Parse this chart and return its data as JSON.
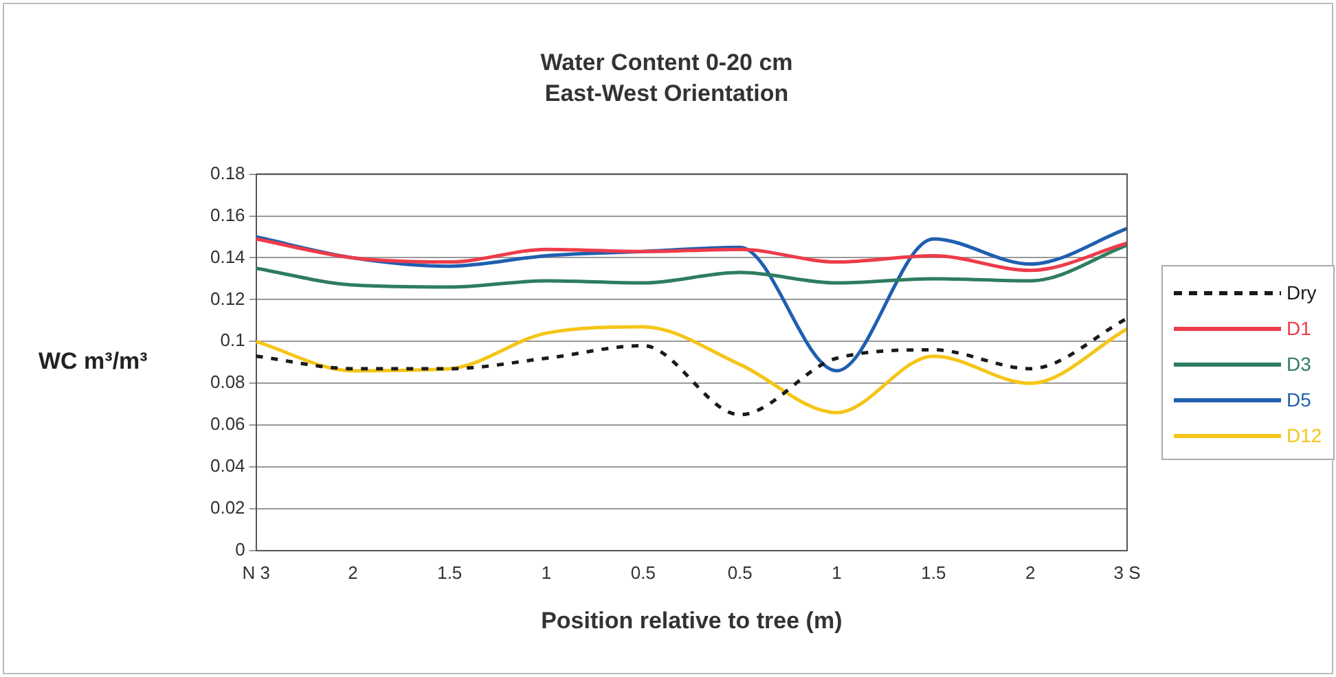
{
  "chart_data": {
    "type": "line",
    "title": "Water Content 0-20 cm",
    "subtitle": "East-West Orientation",
    "xlabel": "Position relative to tree (m)",
    "ylabel": "WC m³/m³",
    "categories": [
      "N 3",
      "2",
      "1.5",
      "1",
      "0.5",
      "0.5",
      "1",
      "1.5",
      "2",
      "3 S"
    ],
    "series": [
      {
        "name": "Dry",
        "color": "#1a1a1a",
        "line_style": "dashed",
        "values": [
          0.093,
          0.087,
          0.087,
          0.092,
          0.098,
          0.065,
          0.092,
          0.096,
          0.087,
          0.111
        ]
      },
      {
        "name": "D1",
        "color": "#ee3b4a",
        "values": [
          0.149,
          0.14,
          0.138,
          0.144,
          0.143,
          0.144,
          0.138,
          0.141,
          0.134,
          0.147
        ]
      },
      {
        "name": "D3",
        "color": "#2e7d5f",
        "values": [
          0.135,
          0.127,
          0.126,
          0.129,
          0.128,
          0.133,
          0.128,
          0.13,
          0.129,
          0.146
        ]
      },
      {
        "name": "D5",
        "color": "#1f5fb0",
        "values": [
          0.15,
          0.14,
          0.136,
          0.141,
          0.143,
          0.145,
          0.086,
          0.149,
          0.137,
          0.154
        ]
      },
      {
        "name": "D12",
        "color": "#f5c518",
        "values": [
          0.1,
          0.086,
          0.087,
          0.104,
          0.107,
          0.089,
          0.066,
          0.093,
          0.08,
          0.106
        ]
      }
    ],
    "ylim": [
      0,
      0.18
    ],
    "yticks": [
      0,
      0.02,
      0.04,
      0.06,
      0.08,
      0.1,
      0.12,
      0.14,
      0.16,
      0.18
    ],
    "grid": "y",
    "legend": "right",
    "marker": "none",
    "line_style": "solid"
  }
}
